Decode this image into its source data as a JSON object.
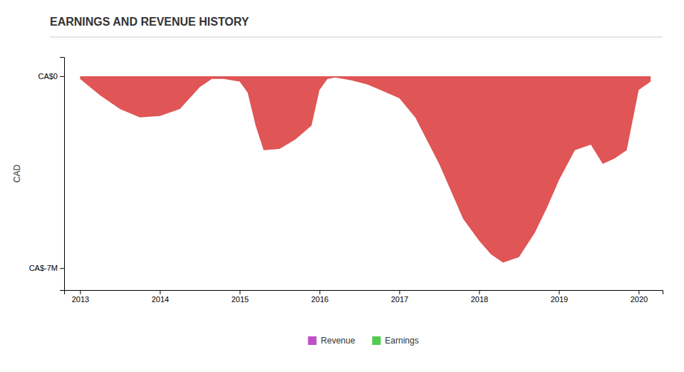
{
  "chart_data": {
    "type": "area",
    "title": "EARNINGS AND REVENUE HISTORY",
    "ylabel": "CAD",
    "color": "#e05555",
    "x": [
      2013.0,
      2013.25,
      2013.5,
      2013.75,
      2014.0,
      2014.25,
      2014.5,
      2014.65,
      2014.8,
      2015.0,
      2015.1,
      2015.2,
      2015.3,
      2015.5,
      2015.7,
      2015.9,
      2016.0,
      2016.1,
      2016.2,
      2016.4,
      2016.6,
      2016.8,
      2017.0,
      2017.2,
      2017.5,
      2017.8,
      2018.0,
      2018.15,
      2018.3,
      2018.5,
      2018.7,
      2018.85,
      2019.0,
      2019.2,
      2019.4,
      2019.55,
      2019.7,
      2019.85,
      2020.0,
      2020.15
    ],
    "series": [
      {
        "name": "Revenue",
        "color": "#c050c8",
        "values": [
          null,
          null,
          null,
          null,
          null,
          null,
          null,
          null,
          null,
          null,
          null,
          null,
          null,
          null,
          null,
          null,
          null,
          null,
          null,
          null,
          null,
          null,
          null,
          null,
          null,
          null,
          null,
          null,
          null,
          null,
          null,
          null,
          null,
          null,
          null,
          null,
          null,
          null,
          null,
          null
        ]
      },
      {
        "name": "Earnings",
        "color": "#50cc50",
        "values": [
          -100000,
          -700000,
          -1200000,
          -1500000,
          -1450000,
          -1200000,
          -400000,
          -100000,
          -100000,
          -200000,
          -600000,
          -1800000,
          -2700000,
          -2650000,
          -2300000,
          -1800000,
          -500000,
          -100000,
          -50000,
          -150000,
          -300000,
          -550000,
          -800000,
          -1500000,
          -3200000,
          -5200000,
          -6000000,
          -6500000,
          -6800000,
          -6600000,
          -5700000,
          -4800000,
          -3800000,
          -2700000,
          -2500000,
          -3200000,
          -3000000,
          -2700000,
          -500000,
          -200000
        ]
      }
    ],
    "xlim": [
      2012.8,
      2020.3
    ],
    "xticks": [
      2013,
      2014,
      2015,
      2016,
      2017,
      2018,
      2019,
      2020
    ],
    "ylim": [
      -7800000,
      700000
    ],
    "yticks": [
      {
        "value": 0,
        "label": "CA$0"
      },
      {
        "value": -7000000,
        "label": "CA$-7M"
      }
    ],
    "grid": false,
    "legend": "bottom"
  }
}
